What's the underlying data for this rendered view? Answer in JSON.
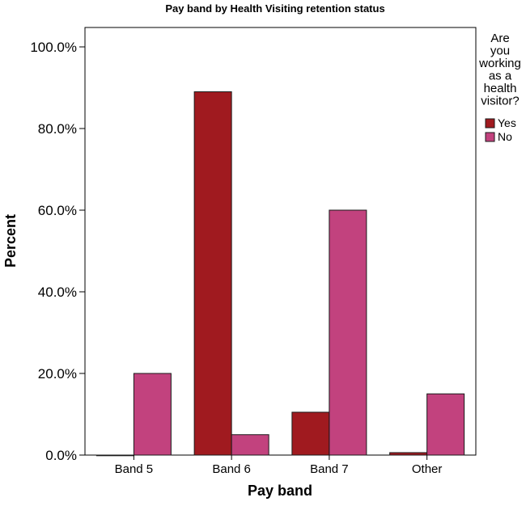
{
  "chart_data": {
    "type": "bar",
    "title": "Pay band by Health Visiting retention status",
    "xlabel": "Pay band",
    "ylabel": "Percent",
    "categories": [
      "Band 5",
      "Band 6",
      "Band 7",
      "Other"
    ],
    "series": [
      {
        "name": "Yes",
        "color": "#a01a1f",
        "values": [
          0.0,
          89.0,
          10.5,
          0.6
        ]
      },
      {
        "name": "No",
        "color": "#c2427e",
        "values": [
          20.0,
          5.0,
          60.0,
          15.0
        ]
      }
    ],
    "ylim": [
      0,
      100
    ],
    "yticks": [
      "0.0%",
      "20.0%",
      "40.0%",
      "60.0%",
      "80.0%",
      "100.0%"
    ],
    "legend": {
      "title_lines": [
        "Are",
        "you",
        "working",
        "as a",
        "health",
        "visitor?"
      ],
      "position": "right"
    },
    "grid": false
  }
}
